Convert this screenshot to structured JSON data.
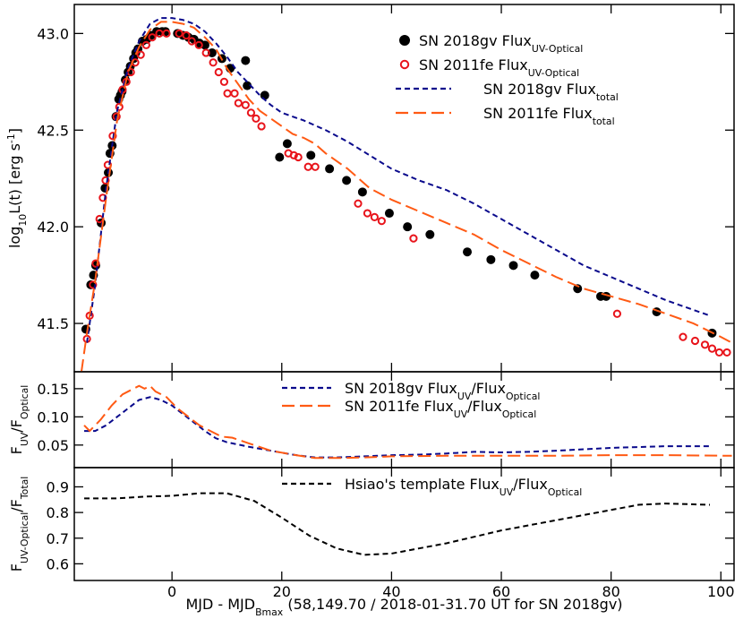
{
  "chart_data": [
    {
      "type": "line",
      "xlim": [
        -17.8,
        102.4
      ],
      "xticks": [
        0,
        20,
        40,
        60,
        80,
        100
      ],
      "ylim": [
        41.25,
        43.15
      ],
      "yticks": [
        41.5,
        {
          "value": 42,
          "label": "42.0"
        },
        42.5,
        {
          "value": 43,
          "label": "43.0"
        }
      ],
      "ylabel": [
        {
          "text": "log"
        },
        {
          "sub": "10"
        },
        {
          "text": "L(t) [erg s"
        },
        {
          "sup": "-1"
        },
        {
          "text": "]"
        }
      ],
      "legend": "upper right",
      "series": [
        {
          "name": [
            {
              "text": "SN 2018gv Flux"
            },
            {
              "sub": "UV-Optical"
            }
          ],
          "color": "#000000",
          "marker": "filled-circle",
          "x": [
            -15.7,
            -14.8,
            -14.3,
            -13.9,
            -12.9,
            -12.2,
            -11.6,
            -11.3,
            -10.9,
            -10.2,
            -9.7,
            -9.4,
            -9.1,
            -8.5,
            -8.0,
            -7.6,
            -7.0,
            -6.6,
            -6.2,
            -5.4,
            -4.6,
            -3.8,
            -2.8,
            -1.8,
            -1.2,
            1.0,
            2.0,
            3.0,
            4.0,
            5.0,
            6.0,
            7.3,
            9.1,
            10.6,
            13.4,
            13.7,
            16.9,
            19.6,
            21.0,
            25.3,
            28.7,
            31.8,
            34.7,
            39.6,
            42.9,
            47.0,
            53.8,
            58.1,
            62.2,
            66.1,
            73.9,
            78.1,
            79.1,
            88.3,
            98.4
          ],
          "values": [
            41.47,
            41.7,
            41.75,
            41.8,
            42.02,
            42.2,
            42.28,
            42.38,
            42.42,
            42.57,
            42.66,
            42.68,
            42.7,
            42.76,
            42.8,
            42.83,
            42.87,
            42.9,
            42.92,
            42.96,
            42.97,
            42.99,
            43.01,
            43.01,
            43.01,
            43.0,
            42.99,
            42.98,
            42.97,
            42.95,
            42.94,
            42.9,
            42.87,
            42.82,
            42.86,
            42.73,
            42.68,
            42.36,
            42.43,
            42.37,
            42.3,
            42.24,
            42.18,
            42.07,
            42.0,
            41.96,
            41.87,
            41.83,
            41.8,
            41.75,
            41.68,
            41.64,
            41.64,
            41.56,
            41.45
          ]
        },
        {
          "name": [
            {
              "text": "SN 2011fe Flux"
            },
            {
              "sub": "UV-Optical"
            }
          ],
          "color": "#e8141b",
          "marker": "open-circle",
          "x": [
            -15.5,
            -15.0,
            -14.4,
            -13.9,
            -13.2,
            -12.6,
            -12.1,
            -11.7,
            -10.8,
            -10.1,
            -9.6,
            -9.0,
            -8.3,
            -7.5,
            -6.7,
            -5.7,
            -4.7,
            -3.6,
            -2.3,
            -1.0,
            1.3,
            2.6,
            3.6,
            4.9,
            6.2,
            7.5,
            8.5,
            9.5,
            10.1,
            11.4,
            12.1,
            13.4,
            14.4,
            15.3,
            16.3,
            21.2,
            22.2,
            23.0,
            24.8,
            26.1,
            33.9,
            35.6,
            36.9,
            38.2,
            44.0,
            81.1,
            93.1,
            95.3,
            97.1,
            98.4,
            99.7,
            101.1
          ],
          "values": [
            41.42,
            41.54,
            41.7,
            41.81,
            42.04,
            42.15,
            42.24,
            42.32,
            42.47,
            42.57,
            42.62,
            42.71,
            42.75,
            42.8,
            42.85,
            42.89,
            42.94,
            42.98,
            43.0,
            43.0,
            43.0,
            42.99,
            42.96,
            42.94,
            42.9,
            42.85,
            42.8,
            42.75,
            42.69,
            42.69,
            42.64,
            42.63,
            42.59,
            42.56,
            42.52,
            42.38,
            42.37,
            42.36,
            42.31,
            42.31,
            42.12,
            42.07,
            42.05,
            42.03,
            41.94,
            41.55,
            41.43,
            41.41,
            41.39,
            41.37,
            41.35,
            41.35
          ]
        },
        {
          "name": [
            {
              "text": "SN 2018gv Flux"
            },
            {
              "sub": "total"
            }
          ],
          "color": "#0a0a8c",
          "dash": "6,4",
          "x": [
            -15.5,
            -14,
            -12,
            -10,
            -8,
            -6,
            -4,
            -2,
            0,
            2,
            4,
            6,
            8,
            10,
            12,
            14,
            16,
            18,
            20,
            24,
            28,
            32,
            36,
            40,
            45,
            50,
            55,
            60,
            65,
            70,
            75,
            80,
            85,
            90,
            95,
            98
          ],
          "values": [
            41.4,
            41.7,
            42.2,
            42.6,
            42.82,
            42.96,
            43.05,
            43.08,
            43.08,
            43.07,
            43.05,
            43.01,
            42.95,
            42.88,
            42.8,
            42.74,
            42.68,
            42.63,
            42.59,
            42.55,
            42.5,
            42.44,
            42.37,
            42.3,
            42.24,
            42.19,
            42.12,
            42.04,
            41.96,
            41.88,
            41.8,
            41.74,
            41.68,
            41.62,
            41.57,
            41.54
          ]
        },
        {
          "name": [
            {
              "text": "SN 2011fe Flux"
            },
            {
              "sub": "total"
            }
          ],
          "color": "#ff5a14",
          "dash": "14,6",
          "x": [
            -16.5,
            -15.5,
            -14,
            -12,
            -10,
            -8,
            -6,
            -4,
            -2,
            0,
            2,
            4,
            6,
            8,
            10,
            12,
            14,
            16,
            18,
            20,
            22,
            24,
            26,
            28,
            32,
            36,
            40,
            45,
            50,
            55,
            60,
            65,
            70,
            75,
            80,
            85,
            90,
            95,
            100,
            102
          ],
          "values": [
            41.25,
            41.45,
            41.72,
            42.15,
            42.55,
            42.8,
            42.93,
            43.02,
            43.06,
            43.06,
            43.05,
            43.03,
            42.98,
            42.92,
            42.82,
            42.74,
            42.66,
            42.6,
            42.56,
            42.52,
            42.48,
            42.46,
            42.43,
            42.38,
            42.3,
            42.2,
            42.14,
            42.08,
            42.02,
            41.96,
            41.88,
            41.81,
            41.74,
            41.68,
            41.64,
            41.6,
            41.55,
            41.5,
            41.43,
            41.4
          ]
        }
      ]
    },
    {
      "type": "line",
      "xlim": [
        -17.8,
        102.4
      ],
      "xticks": [
        0,
        20,
        40,
        60,
        80,
        100
      ],
      "ylim": [
        0.01,
        0.18
      ],
      "yticks": [
        0.05,
        {
          "value": 0.1,
          "label": "0.10"
        },
        0.15
      ],
      "ylabel": [
        {
          "text": "F"
        },
        {
          "sub": "UV"
        },
        {
          "text": "/F"
        },
        {
          "sub": "Optical"
        }
      ],
      "legend": "upper center",
      "series": [
        {
          "name": [
            {
              "text": "SN 2018gv Flux"
            },
            {
              "sub": "UV"
            },
            {
              "text": "/Flux"
            },
            {
              "sub": "Optical"
            }
          ],
          "color": "#0a0a8c",
          "dash": "6,4",
          "x": [
            -16,
            -14,
            -12,
            -10,
            -8,
            -6,
            -4,
            -2,
            0,
            2,
            4,
            6,
            8,
            10,
            14,
            18,
            22,
            26,
            30,
            35,
            40,
            45,
            50,
            55,
            60,
            65,
            70,
            80,
            90,
            98
          ],
          "values": [
            0.075,
            0.075,
            0.085,
            0.1,
            0.115,
            0.13,
            0.135,
            0.13,
            0.12,
            0.105,
            0.09,
            0.075,
            0.062,
            0.055,
            0.047,
            0.04,
            0.033,
            0.028,
            0.028,
            0.03,
            0.032,
            0.033,
            0.035,
            0.038,
            0.037,
            0.038,
            0.04,
            0.045,
            0.048,
            0.048
          ]
        },
        {
          "name": [
            {
              "text": "SN 2011fe Flux"
            },
            {
              "sub": "UV"
            },
            {
              "text": "/Flux"
            },
            {
              "sub": "Optical"
            }
          ],
          "color": "#ff5a14",
          "dash": "14,6",
          "x": [
            -16,
            -15,
            -13,
            -11,
            -9,
            -7,
            -6,
            -5,
            -4,
            -3,
            -1,
            1,
            3,
            5,
            7,
            9,
            11,
            14,
            18,
            22,
            26,
            30,
            35,
            40,
            50,
            60,
            70,
            80,
            90,
            102
          ],
          "values": [
            0.085,
            0.075,
            0.095,
            0.12,
            0.14,
            0.15,
            0.155,
            0.15,
            0.155,
            0.145,
            0.135,
            0.115,
            0.1,
            0.085,
            0.075,
            0.065,
            0.063,
            0.053,
            0.04,
            0.033,
            0.027,
            0.027,
            0.028,
            0.03,
            0.031,
            0.031,
            0.031,
            0.032,
            0.032,
            0.031
          ]
        }
      ]
    },
    {
      "type": "line",
      "xlim": [
        -17.8,
        102.4
      ],
      "xticks": [
        0,
        20,
        40,
        60,
        80,
        100
      ],
      "xtick_labels": true,
      "ylim": [
        0.535,
        0.975
      ],
      "yticks": [
        0.6,
        0.7,
        0.8,
        0.9
      ],
      "ylabel": [
        {
          "text": "F"
        },
        {
          "sub": "UV-Optical"
        },
        {
          "text": "/F"
        },
        {
          "sub": "Total"
        }
      ],
      "xlabel": [
        {
          "text": "MJD - MJD"
        },
        {
          "sub": "Bmax"
        },
        {
          "text": " (58,149.70 / 2018-01-31.70 UT for SN 2018gv)"
        }
      ],
      "legend": "upper center",
      "series": [
        {
          "name": [
            {
              "text": "Hsiao's template Flux"
            },
            {
              "sub": "UV"
            },
            {
              "text": "/Flux"
            },
            {
              "sub": "Optical"
            }
          ],
          "color": "#000000",
          "dash": "6,4",
          "x": [
            -16,
            -10,
            -5,
            0,
            5,
            10,
            15,
            20,
            25,
            30,
            35,
            40,
            45,
            50,
            60,
            70,
            80,
            85,
            90,
            98
          ],
          "values": [
            0.855,
            0.855,
            0.862,
            0.865,
            0.875,
            0.875,
            0.845,
            0.78,
            0.71,
            0.66,
            0.635,
            0.64,
            0.66,
            0.68,
            0.73,
            0.77,
            0.81,
            0.83,
            0.835,
            0.83
          ]
        }
      ]
    }
  ]
}
